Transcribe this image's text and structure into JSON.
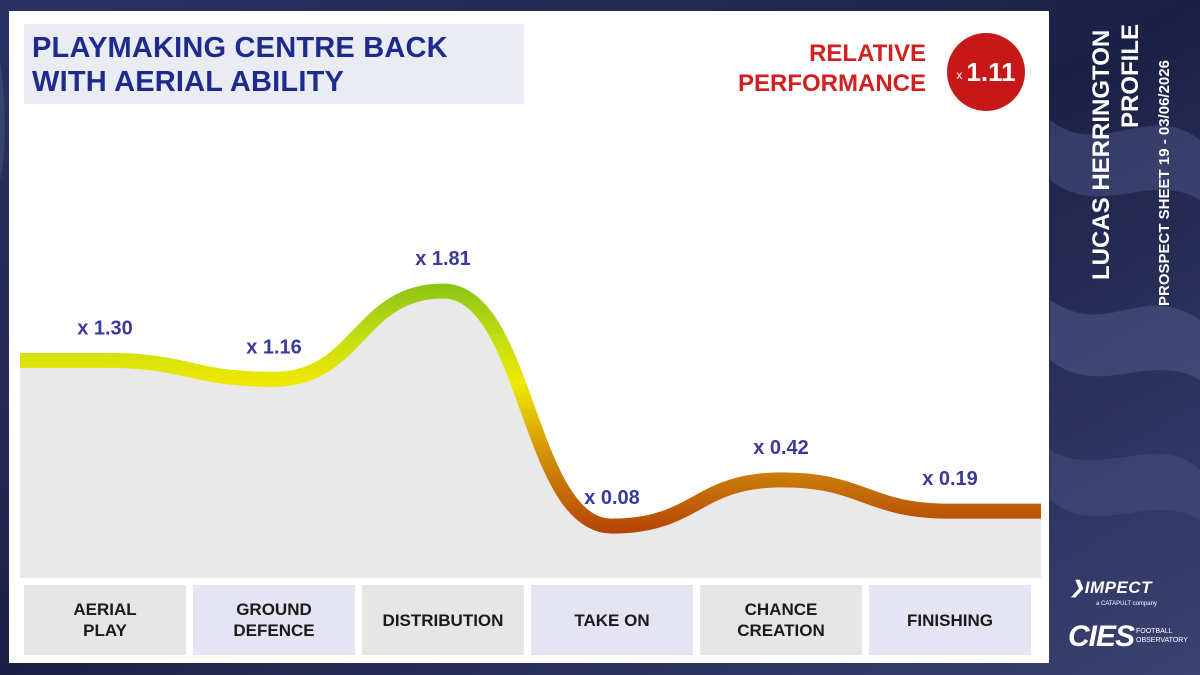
{
  "title_lines": [
    "PLAYMAKING CENTRE BACK",
    "WITH AERIAL ABILITY"
  ],
  "relative": {
    "label_lines": [
      "RELATIVE",
      "PERFORMANCE"
    ],
    "prefix": "x",
    "value": "1.11"
  },
  "side": {
    "name_line1": "LUCAS HERRINGTON",
    "name_line2": "PROFILE",
    "sheet": "PROSPECT SHEET 19 - 03/06/2026"
  },
  "logos": {
    "impect": "IMPECT",
    "impect_sub": "a CATAPULT company",
    "cies": "CIES",
    "cies_sub": "FOOTBALL OBSERVATORY"
  },
  "colors": {
    "title": "#1e2a8c",
    "relative_label": "#d41f1f",
    "relative_badge": "#c61818",
    "value_labels": "#3a3a9a",
    "area_fill": "#e9e9e9",
    "line_high": "#a6d014",
    "line_mid": "#f0e800",
    "line_low": "#b83a06"
  },
  "chart_data": {
    "type": "line",
    "categories": [
      [
        "AERIAL",
        "PLAY"
      ],
      [
        "GROUND",
        "DEFENCE"
      ],
      [
        "DISTRIBUTION"
      ],
      [
        "TAKE ON"
      ],
      [
        "CHANCE",
        "CREATION"
      ],
      [
        "FINISHING"
      ]
    ],
    "values": [
      1.3,
      1.16,
      1.81,
      0.08,
      0.42,
      0.19
    ],
    "labels": [
      "x 1.30",
      "x 1.16",
      "x 1.81",
      "x 0.08",
      "x 0.42",
      "x 0.19"
    ],
    "grid": false,
    "legend": "none"
  }
}
